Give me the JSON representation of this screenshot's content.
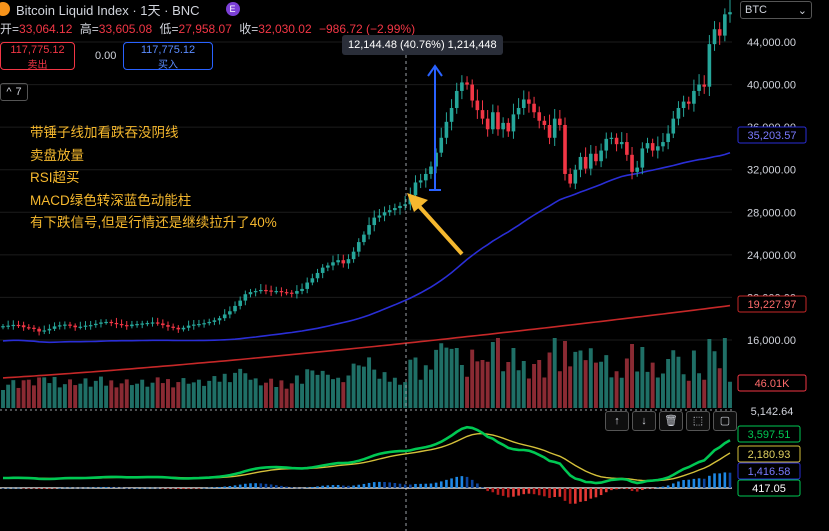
{
  "header": {
    "title": "Bitcoin Liquid Index · 1天 · BNC",
    "e_badge": "E",
    "ohlc": [
      {
        "label": "开=",
        "value": "33,064.12"
      },
      {
        "label": "高=",
        "value": "33,605.08"
      },
      {
        "label": "低=",
        "value": "27,958.07"
      },
      {
        "label": "收=",
        "value": "32,030.02"
      },
      {
        "label": "",
        "value": "−986.72 (−2.99%)"
      }
    ],
    "sell_price": "117,775.12",
    "sell_label": "卖出",
    "spread": "0.00",
    "buy_price": "117,775.12",
    "buy_label": "买入",
    "collapse_count": "7",
    "currency": "BTC"
  },
  "tooltip": "12,144.48 (40.76%) 1,214,448",
  "annotation": {
    "lines": [
      "带锤子线加看跌吞没阴线",
      "卖盘放量",
      "RSI超买",
      "MACD绿色转深蓝色动能柱",
      "有下跌信号,但是行情还是继续拉升了40%"
    ]
  },
  "pane_buttons": [
    "↑",
    "↓",
    "🗑",
    "⬚",
    "▢"
  ],
  "colors": {
    "up": "#26a69a",
    "down": "#f23645",
    "ma_blue": "#2a2ed6",
    "ma_red": "#c62828",
    "macd_line": "#00c853",
    "signal_line": "#d4c03a",
    "annotation": "#f5b82e"
  },
  "chart_data": [
    {
      "type": "line",
      "title": "Bitcoin Liquid Index · 1天 · BNC",
      "price_axis": {
        "ticks": [
          16000,
          20000,
          24000,
          28000,
          32000,
          36000,
          40000,
          44000
        ],
        "tick_labels": [
          "16,000.00",
          "20,000.00",
          "24,000.00",
          "28,000.00",
          "32,000.00",
          "36,000.00",
          "40,000.00",
          "44,000.00"
        ]
      },
      "price_close": [
        17300,
        17350,
        17420,
        17380,
        17200,
        17150,
        17050,
        16800,
        16900,
        17050,
        17280,
        17380,
        17450,
        17350,
        17200,
        17250,
        17350,
        17400,
        17520,
        17650,
        17700,
        17600,
        17500,
        17400,
        17300,
        17450,
        17500,
        17550,
        17600,
        17650,
        17550,
        17400,
        17250,
        17150,
        17000,
        17150,
        17350,
        17450,
        17500,
        17580,
        17700,
        17850,
        18050,
        18400,
        18700,
        19200,
        19700,
        20300,
        20500,
        20600,
        20700,
        20650,
        20600,
        20600,
        20500,
        20450,
        20350,
        20600,
        20800,
        21400,
        21800,
        22300,
        22800,
        23000,
        23300,
        23500,
        23200,
        23600,
        24300,
        25200,
        25900,
        26800,
        27500,
        27700,
        28000,
        28200,
        28400,
        28600,
        28750,
        29600,
        30800,
        31000,
        31600,
        32300,
        33600,
        35000,
        36500,
        37800,
        39400,
        40200,
        40000,
        38500,
        37600,
        36800,
        35800,
        37400,
        35800,
        36400,
        35600,
        37200,
        37800,
        38600,
        38200,
        37400,
        36600,
        36200,
        35000,
        36800,
        36200,
        31600,
        30700,
        32000,
        33200,
        32100,
        33500,
        32800,
        33800,
        34900,
        35000,
        34400,
        34600,
        33400,
        31800,
        32200,
        34000,
        34500,
        33800,
        34200,
        34600,
        35400,
        36800,
        37800,
        38400,
        38200,
        39400,
        40000,
        39800,
        43800,
        45200,
        44600,
        46600,
        46800
      ],
      "series": [
        {
          "name": "",
          "label": "35,203.57",
          "color": "#2a2ed6"
        },
        {
          "name": "",
          "label": "19,227.97",
          "color": "#c62828"
        }
      ],
      "volume_label": "46.01K",
      "crosshair_tooltip": {
        "change": "12,144.48",
        "percent": "40.76%",
        "ticks": "1,214,448"
      }
    },
    {
      "type": "line",
      "title": "MACD",
      "axis_labels": [
        "5,142.64",
        "3,597.51",
        "2,180.93",
        "1,416.58",
        "417.05"
      ],
      "series_labels": {
        "macd": "3,597.51",
        "signal": "2,180.93",
        "histogram": "1,416.58",
        "zero": "417.05",
        "top": "5,142.64"
      }
    }
  ]
}
